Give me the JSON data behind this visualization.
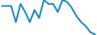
{
  "x": [
    0,
    1,
    2,
    3,
    4,
    5,
    6,
    7,
    8,
    9,
    10,
    11,
    12,
    13,
    14,
    15,
    16,
    17,
    18,
    19,
    20
  ],
  "y": [
    7.0,
    7.0,
    7.0,
    3.0,
    7.5,
    5.5,
    3.0,
    6.0,
    4.0,
    8.5,
    7.5,
    7.5,
    5.5,
    8.5,
    8.0,
    6.5,
    4.5,
    3.0,
    2.0,
    0.5,
    0.0
  ],
  "line_color": "#1a8abf",
  "linewidth": 1.5,
  "background_color": "#ffffff"
}
